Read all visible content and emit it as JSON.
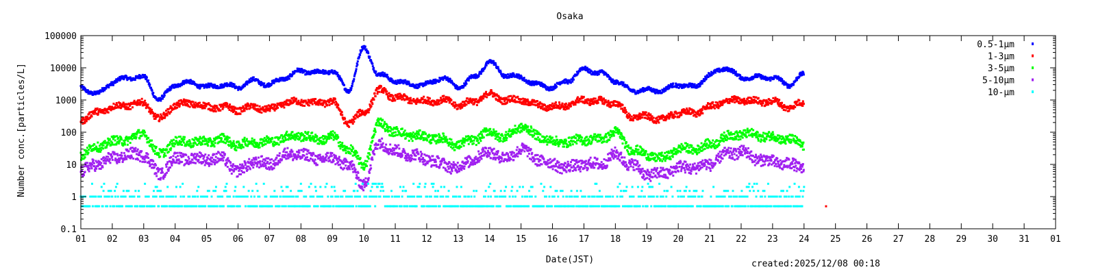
{
  "chart_data": {
    "type": "scatter",
    "title": "Osaka",
    "xlabel": "Date(JST)",
    "ylabel": "Number conc.[particles/L]",
    "yscale": "log",
    "ylim": [
      0.1,
      100000
    ],
    "xlim": [
      1,
      32
    ],
    "yticks": [
      "0.1",
      "1",
      "10",
      "100",
      "1000",
      "10000",
      "100000"
    ],
    "xticks": [
      "01",
      "02",
      "03",
      "04",
      "05",
      "06",
      "07",
      "08",
      "09",
      "10",
      "11",
      "12",
      "13",
      "14",
      "15",
      "16",
      "17",
      "18",
      "19",
      "20",
      "21",
      "22",
      "23",
      "24",
      "25",
      "26",
      "27",
      "28",
      "29",
      "30",
      "31",
      "01"
    ],
    "legend_position": "top-right",
    "x_days": [
      1.0,
      1.5,
      2.0,
      2.5,
      3.0,
      3.5,
      4.0,
      4.5,
      5.0,
      5.5,
      6.0,
      6.5,
      7.0,
      7.5,
      8.0,
      8.5,
      9.0,
      9.5,
      10.0,
      10.5,
      11.0,
      11.5,
      12.0,
      12.5,
      13.0,
      13.5,
      14.0,
      14.5,
      15.0,
      15.5,
      16.0,
      16.5,
      17.0,
      17.5,
      18.0,
      18.5,
      19.0,
      19.5,
      20.0,
      20.5,
      21.0,
      21.5,
      22.0,
      22.5,
      23.0,
      23.5,
      24.0
    ],
    "series": [
      {
        "name": "0.5-1μm",
        "color": "#0000ff",
        "values": [
          2500,
          1500,
          3500,
          5000,
          5000,
          1000,
          3000,
          3500,
          2500,
          3000,
          2500,
          4000,
          3000,
          5000,
          8000,
          7000,
          8000,
          2000,
          40000,
          6000,
          4000,
          3000,
          3000,
          5000,
          2500,
          5000,
          15000,
          6000,
          5000,
          3000,
          2500,
          4000,
          9000,
          7000,
          4000,
          2000,
          2000,
          2000,
          3000,
          2500,
          6000,
          10000,
          5000,
          5000,
          5000,
          3000,
          6000
        ]
      },
      {
        "name": "1-3μm",
        "color": "#ff0000",
        "values": [
          250,
          400,
          600,
          700,
          800,
          250,
          700,
          800,
          600,
          600,
          500,
          600,
          500,
          800,
          900,
          800,
          900,
          200,
          400,
          2000,
          1200,
          1000,
          900,
          1000,
          700,
          900,
          1500,
          1000,
          1000,
          700,
          600,
          700,
          1000,
          900,
          800,
          300,
          300,
          250,
          400,
          400,
          600,
          900,
          1000,
          900,
          900,
          600,
          800
        ]
      },
      {
        "name": "3-5μm",
        "color": "#00ff00",
        "values": [
          20,
          35,
          50,
          60,
          90,
          20,
          50,
          50,
          50,
          60,
          40,
          50,
          50,
          70,
          80,
          60,
          70,
          30,
          10,
          200,
          100,
          80,
          70,
          60,
          40,
          60,
          100,
          70,
          150,
          80,
          50,
          50,
          60,
          60,
          100,
          30,
          20,
          15,
          30,
          30,
          40,
          70,
          90,
          80,
          70,
          60,
          40
        ]
      },
      {
        "name": "5-10μm",
        "color": "#a020f0",
        "values": [
          6,
          10,
          15,
          20,
          20,
          5,
          15,
          15,
          15,
          15,
          6,
          12,
          10,
          20,
          20,
          15,
          15,
          10,
          2.5,
          50,
          25,
          20,
          15,
          10,
          8,
          15,
          25,
          15,
          30,
          15,
          10,
          8,
          10,
          10,
          20,
          10,
          5,
          5,
          8,
          8,
          10,
          20,
          25,
          15,
          12,
          10,
          8
        ]
      },
      {
        "name": "10-μm",
        "color": "#00ffff",
        "levels": [
          0.5,
          1,
          1.5,
          2,
          2.5
        ]
      }
    ],
    "outliers": [
      {
        "series": "1-3μm",
        "x": 24.7,
        "y": 0.5
      }
    ],
    "footer": "created:2025/12/08 00:18"
  }
}
